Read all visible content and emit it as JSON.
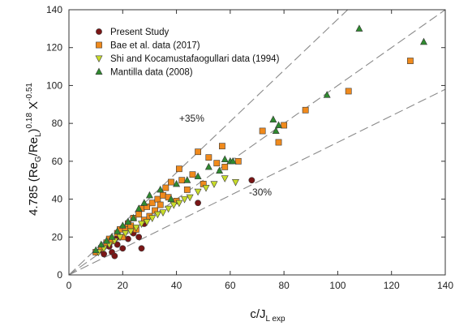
{
  "chart_data": {
    "type": "scatter",
    "xlabel": {
      "main": "c/J",
      "sub": "L exp"
    },
    "ylabel": {
      "p1": "4.785 (Re",
      "s1": "G",
      "p2": "/Re",
      "s2": "L",
      "p3": ")",
      "sup1": "0.18",
      "p4": " X",
      "sup2": "-0.51"
    },
    "xlim": [
      0,
      140
    ],
    "ylim": [
      0,
      140
    ],
    "xticks": [
      0,
      20,
      40,
      60,
      80,
      100,
      120,
      140
    ],
    "yticks": [
      0,
      20,
      40,
      60,
      80,
      100,
      120,
      140
    ],
    "xtick_labels": [
      "0",
      "20",
      "40",
      "60",
      "80",
      "100",
      "120",
      "140"
    ],
    "ytick_labels": [
      "0",
      "20",
      "40",
      "60",
      "80",
      "100",
      "120",
      "140"
    ],
    "grid": false,
    "legend_position": "top-left",
    "reference_lines": [
      {
        "label": "",
        "slope": 1.0
      },
      {
        "label": "+35%",
        "slope": 1.35
      },
      {
        "label": "-30%",
        "slope": 0.7
      }
    ],
    "series": [
      {
        "name": "Present Study",
        "marker": "circle",
        "color": "#7a1616",
        "x": [
          10,
          12,
          13,
          15,
          15,
          16,
          17,
          18,
          18,
          20,
          22,
          24,
          26,
          27,
          28,
          48,
          68
        ],
        "y": [
          12,
          13,
          11,
          15,
          17,
          12,
          10,
          16,
          20,
          14,
          19,
          22,
          20,
          14,
          27,
          38,
          50
        ]
      },
      {
        "name": "Bae et al. data (2017)",
        "marker": "square",
        "color": "#f08a1c",
        "x": [
          10,
          12,
          14,
          15,
          16,
          18,
          19,
          20,
          21,
          22,
          23,
          24,
          25,
          26,
          27,
          28,
          29,
          30,
          31,
          32,
          33,
          34,
          35,
          36,
          37,
          38,
          40,
          41,
          42,
          44,
          46,
          48,
          50,
          52,
          55,
          57,
          58,
          63,
          72,
          78,
          80,
          88,
          104,
          127
        ],
        "y": [
          12,
          14,
          17,
          19,
          18,
          22,
          24,
          20,
          25,
          27,
          26,
          30,
          24,
          32,
          35,
          29,
          36,
          31,
          38,
          34,
          40,
          37,
          42,
          46,
          41,
          49,
          39,
          56,
          50,
          45,
          53,
          65,
          48,
          62,
          59,
          68,
          57,
          60,
          76,
          70,
          79,
          87,
          97,
          113
        ]
      },
      {
        "name": "Shi and Kocamustafaogullari data (1994)",
        "marker": "triangle-down",
        "color": "#c8dc2a",
        "x": [
          11,
          13,
          15,
          17,
          19,
          21,
          23,
          25,
          27,
          29,
          31,
          33,
          35,
          37,
          39,
          41,
          43,
          45,
          48,
          51,
          54,
          58,
          62
        ],
        "y": [
          12,
          14,
          16,
          18,
          20,
          22,
          23,
          25,
          27,
          28,
          30,
          32,
          33,
          35,
          37,
          38,
          40,
          41,
          44,
          46,
          48,
          51,
          49
        ]
      },
      {
        "name": "Mantilla data (2008)",
        "marker": "triangle-up",
        "color": "#2f8a2f",
        "x": [
          10,
          12,
          14,
          16,
          18,
          20,
          22,
          24,
          26,
          28,
          30,
          34,
          38,
          40,
          44,
          48,
          52,
          56,
          58,
          60,
          61,
          76,
          77,
          78,
          96,
          108,
          132
        ],
        "y": [
          13,
          16,
          18,
          20,
          23,
          26,
          28,
          30,
          35,
          38,
          42,
          45,
          40,
          48,
          50,
          52,
          57,
          55,
          61,
          60,
          60,
          82,
          76,
          79,
          95,
          130,
          123
        ]
      }
    ]
  }
}
